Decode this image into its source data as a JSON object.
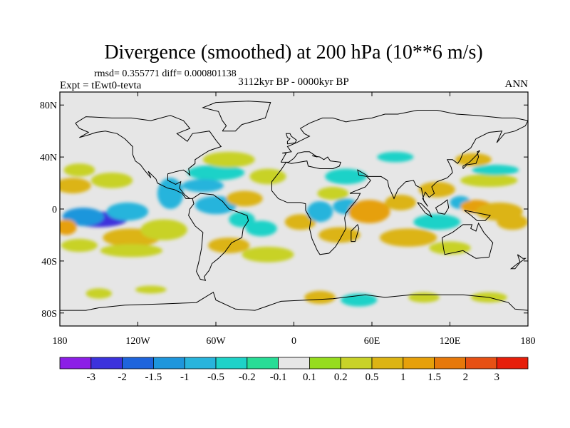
{
  "chart_data": {
    "type": "heatmap",
    "title": "Divergence (smoothed) at 200 hPa (10**6 m/s)",
    "stats_label": "rmsd= 0.355771 diff= 0.000801138",
    "left_label": "Expt = tEwt0-tevta",
    "center_label": "3112kyr BP - 0000kyr BP",
    "right_label": "ANN",
    "xlabel": "",
    "ylabel": "",
    "xlim": [
      -180,
      180
    ],
    "ylim": [
      -90,
      90
    ],
    "x_ticks": [
      {
        "value": -180,
        "label": "180"
      },
      {
        "value": -120,
        "label": "120W"
      },
      {
        "value": -60,
        "label": "60W"
      },
      {
        "value": 0,
        "label": "0"
      },
      {
        "value": 60,
        "label": "60E"
      },
      {
        "value": 120,
        "label": "120E"
      },
      {
        "value": 180,
        "label": "180"
      }
    ],
    "y_ticks": [
      {
        "value": 80,
        "label": "80N"
      },
      {
        "value": 40,
        "label": "40N"
      },
      {
        "value": 0,
        "label": "0"
      },
      {
        "value": -40,
        "label": "40S"
      },
      {
        "value": -80,
        "label": "80S"
      }
    ],
    "colorbar": {
      "colors": [
        "#8c1ee6",
        "#3c32dc",
        "#1e64dc",
        "#1e96dc",
        "#28b4dc",
        "#1ed2c8",
        "#28dc96",
        "#e6e6e6",
        "#96dc1e",
        "#c8d228",
        "#dcb414",
        "#e6a00a",
        "#e6780a",
        "#e65014",
        "#e61e0a"
      ],
      "labels": [
        "-3",
        "-2",
        "-1.5",
        "-1",
        "-0.5",
        "-0.2",
        "-0.1",
        "0.1",
        "0.2",
        "0.5",
        "1",
        "1.5",
        "2",
        "3"
      ]
    },
    "field_blobs": [
      {
        "lon": -150,
        "lat": -8,
        "rx": 22,
        "ry": 6,
        "value": -2.5
      },
      {
        "lon": -162,
        "lat": -6,
        "rx": 16,
        "ry": 7,
        "value": -1.2
      },
      {
        "lon": -128,
        "lat": -2,
        "rx": 16,
        "ry": 7,
        "value": -0.8
      },
      {
        "lon": -170,
        "lat": 18,
        "rx": 14,
        "ry": 6,
        "value": 0.6
      },
      {
        "lon": -140,
        "lat": 22,
        "rx": 16,
        "ry": 6,
        "value": 0.3
      },
      {
        "lon": -175,
        "lat": -14,
        "rx": 8,
        "ry": 6,
        "value": 1.2
      },
      {
        "lon": -125,
        "lat": -22,
        "rx": 22,
        "ry": 7,
        "value": 0.7
      },
      {
        "lon": -100,
        "lat": -16,
        "rx": 18,
        "ry": 8,
        "value": 0.4
      },
      {
        "lon": -95,
        "lat": 12,
        "rx": 10,
        "ry": 12,
        "value": -0.6
      },
      {
        "lon": -60,
        "lat": 3,
        "rx": 16,
        "ry": 7,
        "value": -0.9
      },
      {
        "lon": -40,
        "lat": -8,
        "rx": 10,
        "ry": 6,
        "value": -0.4
      },
      {
        "lon": -38,
        "lat": 8,
        "rx": 14,
        "ry": 6,
        "value": 0.8
      },
      {
        "lon": -60,
        "lat": 28,
        "rx": 22,
        "ry": 6,
        "value": -0.5
      },
      {
        "lon": -70,
        "lat": 18,
        "rx": 16,
        "ry": 5,
        "value": -0.8
      },
      {
        "lon": -50,
        "lat": 38,
        "rx": 20,
        "ry": 6,
        "value": 0.3
      },
      {
        "lon": -20,
        "lat": 25,
        "rx": 14,
        "ry": 6,
        "value": 0.2
      },
      {
        "lon": -25,
        "lat": -15,
        "rx": 12,
        "ry": 6,
        "value": -0.3
      },
      {
        "lon": -50,
        "lat": -28,
        "rx": 16,
        "ry": 6,
        "value": 0.5
      },
      {
        "lon": 5,
        "lat": -10,
        "rx": 12,
        "ry": 6,
        "value": 0.5
      },
      {
        "lon": 20,
        "lat": -2,
        "rx": 10,
        "ry": 8,
        "value": -0.6
      },
      {
        "lon": 35,
        "lat": -20,
        "rx": 16,
        "ry": 6,
        "value": 0.6
      },
      {
        "lon": 30,
        "lat": 12,
        "rx": 12,
        "ry": 5,
        "value": 0.4
      },
      {
        "lon": 40,
        "lat": 25,
        "rx": 16,
        "ry": 6,
        "value": -0.4
      },
      {
        "lon": 40,
        "lat": 2,
        "rx": 10,
        "ry": 6,
        "value": -0.7
      },
      {
        "lon": 62,
        "lat": 0,
        "rx": 11,
        "ry": 6,
        "value": 2.6
      },
      {
        "lon": 58,
        "lat": -2,
        "rx": 16,
        "ry": 9,
        "value": 1.2
      },
      {
        "lon": 82,
        "lat": 5,
        "rx": 12,
        "ry": 6,
        "value": 0.5
      },
      {
        "lon": 88,
        "lat": -22,
        "rx": 22,
        "ry": 7,
        "value": 0.6
      },
      {
        "lon": 110,
        "lat": -10,
        "rx": 18,
        "ry": 6,
        "value": -0.4
      },
      {
        "lon": 110,
        "lat": 15,
        "rx": 14,
        "ry": 6,
        "value": 0.7
      },
      {
        "lon": 128,
        "lat": 5,
        "rx": 8,
        "ry": 5,
        "value": -1.0
      },
      {
        "lon": 140,
        "lat": 2,
        "rx": 12,
        "ry": 5,
        "value": 1.4
      },
      {
        "lon": 158,
        "lat": -2,
        "rx": 18,
        "ry": 7,
        "value": 0.7
      },
      {
        "lon": 168,
        "lat": -10,
        "rx": 12,
        "ry": 6,
        "value": 0.6
      },
      {
        "lon": 150,
        "lat": 22,
        "rx": 22,
        "ry": 5,
        "value": 0.4
      },
      {
        "lon": 155,
        "lat": 30,
        "rx": 18,
        "ry": 4,
        "value": -0.4
      },
      {
        "lon": 138,
        "lat": 38,
        "rx": 14,
        "ry": 5,
        "value": 0.5
      },
      {
        "lon": 78,
        "lat": 40,
        "rx": 14,
        "ry": 4,
        "value": -0.5
      },
      {
        "lon": 120,
        "lat": -30,
        "rx": 16,
        "ry": 5,
        "value": 0.3
      },
      {
        "lon": -125,
        "lat": -32,
        "rx": 24,
        "ry": 5,
        "value": 0.3
      },
      {
        "lon": -20,
        "lat": -35,
        "rx": 20,
        "ry": 6,
        "value": 0.4
      },
      {
        "lon": -165,
        "lat": -28,
        "rx": 14,
        "ry": 5,
        "value": 0.2
      },
      {
        "lon": -165,
        "lat": 30,
        "rx": 12,
        "ry": 5,
        "value": 0.4
      },
      {
        "lon": -150,
        "lat": -65,
        "rx": 10,
        "ry": 4,
        "value": 0.3
      },
      {
        "lon": -110,
        "lat": -62,
        "rx": 12,
        "ry": 3,
        "value": 0.3
      },
      {
        "lon": 20,
        "lat": -68,
        "rx": 12,
        "ry": 5,
        "value": 0.6
      },
      {
        "lon": 50,
        "lat": -70,
        "rx": 14,
        "ry": 5,
        "value": -0.3
      },
      {
        "lon": 100,
        "lat": -68,
        "rx": 12,
        "ry": 4,
        "value": 0.3
      },
      {
        "lon": 150,
        "lat": -68,
        "rx": 14,
        "ry": 4,
        "value": 0.3
      }
    ]
  }
}
